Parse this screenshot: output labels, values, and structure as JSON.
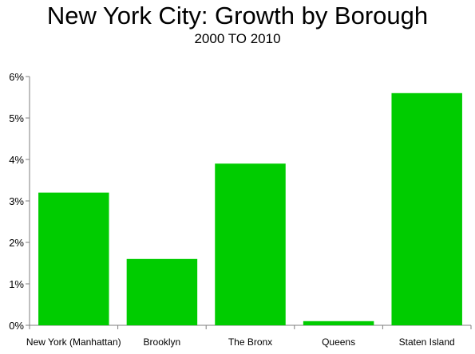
{
  "chart_data": {
    "type": "bar",
    "title": "New York City: Growth by Borough",
    "subtitle": "2000 TO 2010",
    "categories": [
      "New York (Manhattan)",
      "Brooklyn",
      "The Bronx",
      "Queens",
      "Staten Island"
    ],
    "values": [
      3.2,
      1.6,
      3.9,
      0.1,
      5.6
    ],
    "unit": "%",
    "ylim": [
      0,
      6
    ],
    "yticks": [
      "0%",
      "1%",
      "2%",
      "3%",
      "4%",
      "5%",
      "6%"
    ],
    "grid": false,
    "legend": "none",
    "bar_color": "#00cc00"
  }
}
